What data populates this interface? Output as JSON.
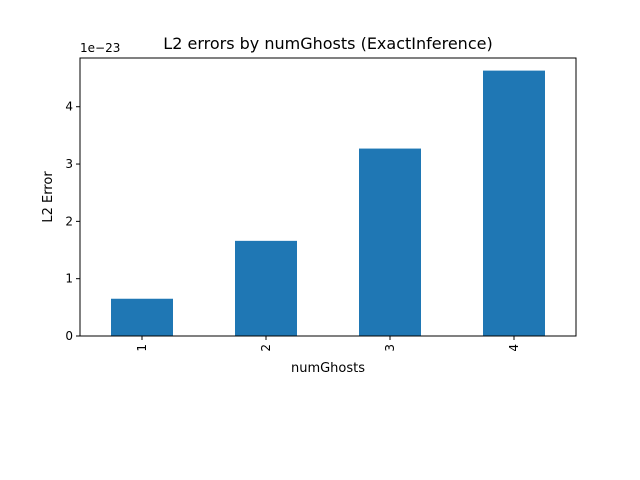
{
  "chart_data": {
    "type": "bar",
    "title": "L2 errors by numGhosts (ExactInference)",
    "xlabel": "numGhosts",
    "ylabel": "L2 Error",
    "offset_label": "1e−23",
    "categories": [
      "1",
      "2",
      "3",
      "4"
    ],
    "values": [
      0.65,
      1.66,
      3.27,
      4.63
    ],
    "y_scale": "×1e-23",
    "ylim": [
      0,
      4.85
    ],
    "yticks": [
      0,
      1,
      2,
      3,
      4
    ],
    "ytick_labels": [
      "0",
      "1",
      "2",
      "3",
      "4"
    ],
    "grid": false,
    "legend": "none",
    "bar_color": "#1f77b4",
    "xtick_rotation": "vertical"
  }
}
